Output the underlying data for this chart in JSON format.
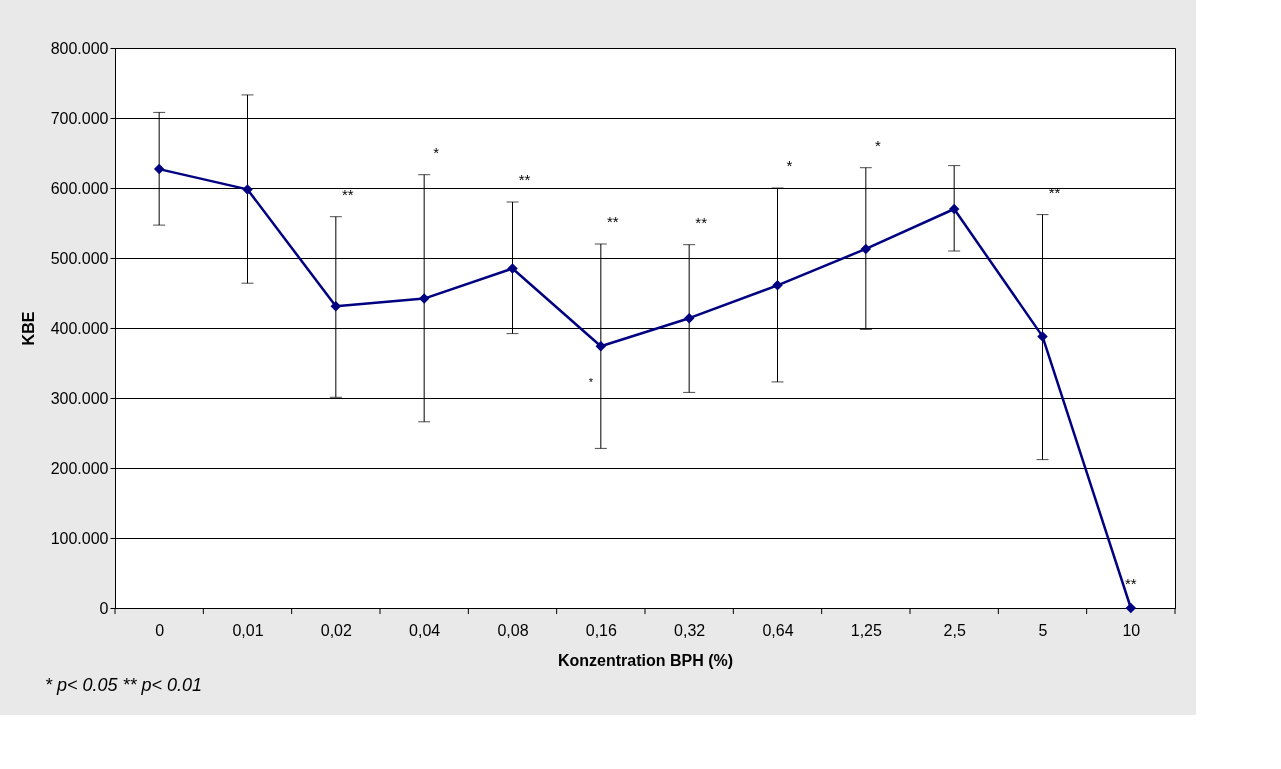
{
  "chart_data": {
    "type": "line",
    "xlabel": "Konzentration BPH (%)",
    "ylabel": "KBE",
    "categories": [
      "0",
      "0,01",
      "0,02",
      "0,04",
      "0,08",
      "0,16",
      "0,32",
      "0,64",
      "1,25",
      "2,5",
      "5",
      "10"
    ],
    "series": [
      {
        "color": "#000080",
        "values": [
          627000,
          598000,
          431000,
          442000,
          485000,
          374000,
          414000,
          461000,
          513000,
          570000,
          388000,
          0
        ],
        "errors": [
          [
            547000,
            708000
          ],
          [
            464000,
            733000
          ],
          [
            301000,
            559000
          ],
          [
            266000,
            619000
          ],
          [
            392000,
            580000
          ],
          [
            228000,
            520000
          ],
          [
            308000,
            519000
          ],
          [
            323000,
            600000
          ],
          [
            398000,
            629000
          ],
          [
            510000,
            632000
          ],
          [
            212000,
            562000
          ],
          null
        ]
      }
    ],
    "ylim": [
      0,
      800000
    ],
    "yticks": [
      0,
      {
        "value": 100000,
        "label": "100.000"
      },
      {
        "value": 200000,
        "label": "200.000"
      },
      {
        "value": 300000,
        "label": "300.000"
      },
      {
        "value": 400000,
        "label": "400.000"
      },
      {
        "value": 500000,
        "label": "500.000"
      },
      {
        "value": 600000,
        "label": "600.000"
      },
      {
        "value": 700000,
        "label": "700.000"
      },
      {
        "value": 800000,
        "label": "800.000"
      }
    ],
    "grid": "y",
    "marker": "diamond",
    "line_style": "solid",
    "annotations": [
      {
        "text": "**",
        "x": "0,02",
        "y": 559000
      },
      {
        "text": "*",
        "x": "0,04",
        "y": 619000
      },
      {
        "text": "**",
        "x": "0,08",
        "y": 580000
      },
      {
        "text": "**",
        "x": "0,16",
        "y": 520000
      },
      {
        "text": "*",
        "x": "0,16",
        "y": 322000
      },
      {
        "text": "**",
        "x": "0,32",
        "y": 519000
      },
      {
        "text": "*",
        "x": "0,64",
        "y": 600000
      },
      {
        "text": "*",
        "x": "1,25",
        "y": 629000
      },
      {
        "text": "**",
        "x": "5",
        "y": 562000
      },
      {
        "text": "**",
        "x": "10",
        "y": 0
      },
      "* p< 0.05     ** p< 0.01"
    ]
  }
}
